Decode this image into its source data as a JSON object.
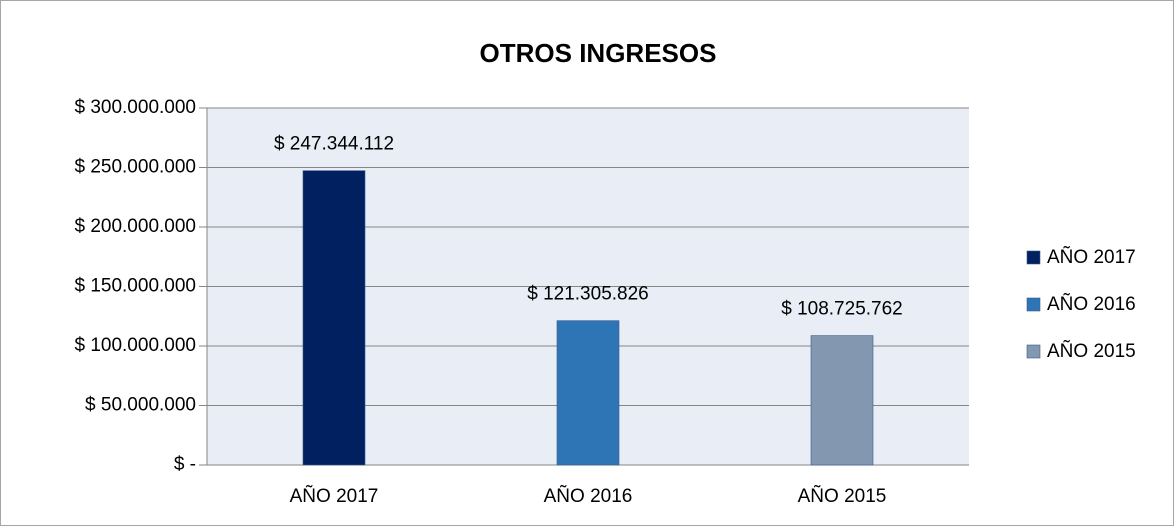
{
  "chart_data": {
    "type": "bar",
    "title": "OTROS INGRESOS",
    "categories": [
      "AÑO 2017",
      "AÑO 2016",
      "AÑO 2015"
    ],
    "values": [
      247344112,
      121305826,
      108725762
    ],
    "value_labels": [
      "$ 247.344.112",
      "$ 121.305.826",
      "$ 108.725.762"
    ],
    "colors": [
      "#002060",
      "#2e75b6",
      "#8497b0"
    ],
    "ylim": [
      0,
      300000000
    ],
    "yticks": [
      {
        "value": 0,
        "label": "$ -"
      },
      {
        "value": 50000000,
        "label": "$ 50.000.000"
      },
      {
        "value": 100000000,
        "label": "$ 100.000.000"
      },
      {
        "value": 150000000,
        "label": "$ 150.000.000"
      },
      {
        "value": 200000000,
        "label": "$ 200.000.000"
      },
      {
        "value": 250000000,
        "label": "$ 250.000.000"
      },
      {
        "value": 300000000,
        "label": "$ 300.000.000"
      }
    ],
    "grid": true,
    "legend": "right"
  }
}
